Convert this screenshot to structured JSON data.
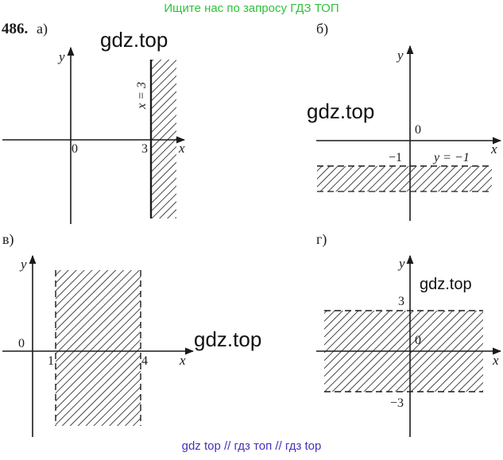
{
  "banner": "Ищите нас по запросу ГДЗ ТОП",
  "footer": "gdz top  //  гдз топ  //  гдз top",
  "watermark": "gdz.top",
  "problem_number": "486.",
  "panels": {
    "a": {
      "label": "а)",
      "x_axis": "x",
      "y_axis": "y",
      "origin": "0",
      "tick_x": "3",
      "boundary_label": "x = 3"
    },
    "b": {
      "label": "б)",
      "x_axis": "x",
      "y_axis": "y",
      "origin": "0",
      "tick_y": "−1",
      "boundary_label": "y = −1"
    },
    "v": {
      "label": "в)",
      "x_axis": "x",
      "y_axis": "y",
      "origin": "0",
      "tick_x1": "1",
      "tick_x2": "4"
    },
    "g": {
      "label": "г)",
      "x_axis": "x",
      "y_axis": "y",
      "origin": "0",
      "tick_y1": "3",
      "tick_y2": "−3"
    }
  }
}
